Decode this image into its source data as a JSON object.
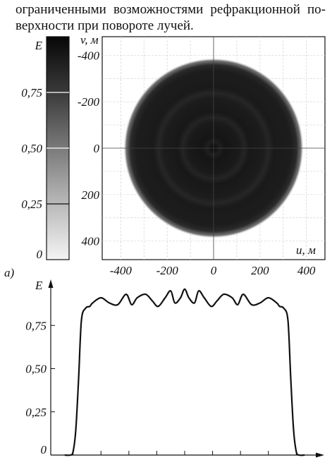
{
  "caption": {
    "line1": "ограниченными возможностями рефракционной по-",
    "line2": "верхности при повороте лучей."
  },
  "colorbar": {
    "label": "E",
    "ticks": [
      "0,75",
      "0,50",
      "0,25",
      "0"
    ],
    "tick_values": [
      0.75,
      0.5,
      0.25,
      0
    ]
  },
  "map": {
    "y_label": "v, м",
    "x_label": "u, м",
    "y_ticks": [
      "400",
      "200",
      "0",
      "-200",
      "-400"
    ],
    "x_ticks": [
      "-400",
      "-200",
      "0",
      "200",
      "400"
    ]
  },
  "panel_label": "а)",
  "profile": {
    "y_label": "E",
    "y_ticks": [
      "0,75",
      "0,50",
      "0,25",
      "0"
    ]
  },
  "chart_data": [
    {
      "type": "heatmap",
      "description_values": "circular illuminated spot",
      "xlabel": "u, м",
      "ylabel": "v, м",
      "xlim": [
        -480,
        480
      ],
      "ylim": [
        -480,
        480
      ],
      "x_ticks": [
        -400,
        -200,
        0,
        200,
        400
      ],
      "y_ticks": [
        -400,
        -200,
        0,
        200,
        400
      ],
      "spot_radius": 390,
      "level": 0.88,
      "grid": true
    },
    {
      "type": "line",
      "xlabel": "",
      "ylabel": "E",
      "xlim": [
        -480,
        480
      ],
      "ylim": [
        0,
        1.0
      ],
      "y_ticks": [
        0,
        0.25,
        0.5,
        0.75
      ],
      "x": [
        -430,
        -410,
        -400,
        -390,
        -380,
        -370,
        -355,
        -340,
        -330,
        -300,
        -270,
        -240,
        -210,
        -190,
        -170,
        -140,
        -115,
        -95,
        -70,
        -50,
        -35,
        -15,
        0,
        15,
        35,
        50,
        70,
        95,
        115,
        140,
        170,
        190,
        210,
        240,
        270,
        300,
        330,
        340,
        355,
        370,
        380,
        390,
        400,
        410,
        430
      ],
      "y": [
        0.0,
        0.0,
        0.02,
        0.15,
        0.45,
        0.78,
        0.85,
        0.86,
        0.88,
        0.91,
        0.88,
        0.87,
        0.93,
        0.87,
        0.91,
        0.93,
        0.89,
        0.86,
        0.91,
        0.95,
        0.88,
        0.91,
        0.96,
        0.91,
        0.88,
        0.95,
        0.91,
        0.86,
        0.89,
        0.93,
        0.91,
        0.87,
        0.93,
        0.87,
        0.88,
        0.91,
        0.88,
        0.86,
        0.85,
        0.78,
        0.45,
        0.15,
        0.02,
        0.0,
        0.0
      ]
    }
  ]
}
